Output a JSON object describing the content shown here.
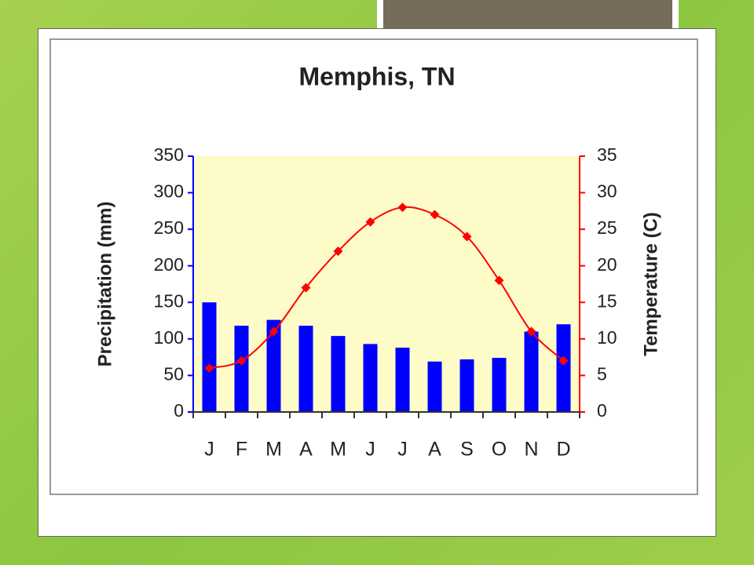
{
  "chart_data": {
    "type": "climate",
    "title": "Memphis, TN",
    "categories": [
      "J",
      "F",
      "M",
      "A",
      "M",
      "J",
      "J",
      "A",
      "S",
      "O",
      "N",
      "D"
    ],
    "series": [
      {
        "name": "Precipitation (mm)",
        "type": "bar",
        "color": "#0000ff",
        "axis": "y",
        "values": [
          150,
          118,
          126,
          118,
          104,
          93,
          88,
          69,
          72,
          74,
          110,
          120
        ]
      },
      {
        "name": "Temperature (C)",
        "type": "line",
        "color": "#ff0000",
        "axis": "y2",
        "values": [
          6,
          7,
          11,
          17,
          22,
          26,
          28,
          27,
          24,
          18,
          11,
          7
        ]
      }
    ],
    "ylabel": "Precipitation (mm)",
    "y2label": "Temperature (C)",
    "ylim": [
      0,
      350
    ],
    "yticks": [
      0,
      50,
      100,
      150,
      200,
      250,
      300,
      350
    ],
    "y2lim": [
      0,
      35
    ],
    "y2ticks": [
      0,
      5,
      10,
      15,
      20,
      25,
      30,
      35
    ]
  }
}
